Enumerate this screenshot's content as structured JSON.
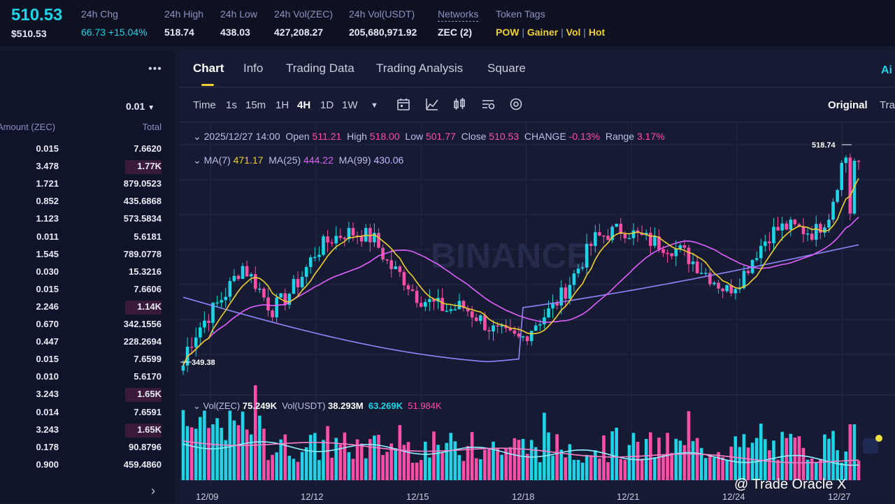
{
  "header": {
    "price_big": "510.53",
    "price_sub": "$510.53",
    "chg_label": "24h Chg",
    "chg_value": "66.73 +15.04%",
    "high_label": "24h High",
    "high_value": "518.74",
    "low_label": "24h Low",
    "low_value": "438.03",
    "vol_zec_label": "24h Vol(ZEC)",
    "vol_zec_value": "427,208.27",
    "vol_usdt_label": "24h Vol(USDT)",
    "vol_usdt_value": "205,680,971.92",
    "networks_label": "Networks",
    "networks_value": "ZEC (2)",
    "tags_label": "Token Tags",
    "tags": [
      "POW",
      "Gainer",
      "Vol",
      "Hot"
    ],
    "tag_sep": "|"
  },
  "orderbook": {
    "more_icon": "more-dots-icon",
    "precision": "0.01",
    "col_amount": "Amount (ZEC)",
    "col_total": "Total",
    "rows": [
      {
        "amount": "0.015",
        "total": "7.6620",
        "depth": 0
      },
      {
        "amount": "3.478",
        "total": "1.77K",
        "depth": 0.26
      },
      {
        "amount": "1.721",
        "total": "879.0523",
        "depth": 0
      },
      {
        "amount": "0.852",
        "total": "435.6868",
        "depth": 0
      },
      {
        "amount": "1.123",
        "total": "573.5834",
        "depth": 0
      },
      {
        "amount": "0.011",
        "total": "5.6181",
        "depth": 0
      },
      {
        "amount": "1.545",
        "total": "789.0778",
        "depth": 0
      },
      {
        "amount": "0.030",
        "total": "15.3216",
        "depth": 0
      },
      {
        "amount": "0.015",
        "total": "7.6606",
        "depth": 0
      },
      {
        "amount": "2.246",
        "total": "1.14K",
        "depth": 0.26
      },
      {
        "amount": "0.670",
        "total": "342.1556",
        "depth": 0
      },
      {
        "amount": "0.447",
        "total": "228.2694",
        "depth": 0
      },
      {
        "amount": "0.015",
        "total": "7.6599",
        "depth": 0
      },
      {
        "amount": "0.010",
        "total": "5.6170",
        "depth": 0
      },
      {
        "amount": "3.243",
        "total": "1.65K",
        "depth": 0.26
      },
      {
        "amount": "0.014",
        "total": "7.6591",
        "depth": 0
      },
      {
        "amount": "3.243",
        "total": "1.65K",
        "depth": 0.26
      },
      {
        "amount": "0.178",
        "total": "90.8796",
        "depth": 0
      },
      {
        "amount": "0.900",
        "total": "459.4860",
        "depth": 0
      }
    ]
  },
  "tabs": [
    "Chart",
    "Info",
    "Trading Data",
    "Trading Analysis",
    "Square"
  ],
  "ai_label": "Ai",
  "toolbar": {
    "timeframes": [
      "Time",
      "1s",
      "15m",
      "1H",
      "4H",
      "1D",
      "1W"
    ],
    "active_tf": "4H",
    "original": "Original",
    "trading_view": "Tra"
  },
  "ohlc": {
    "date": "2025/12/27 14:00",
    "open_label": "Open",
    "open": "511.21",
    "high_label": "High",
    "high": "518.00",
    "low_label": "Low",
    "low": "501.77",
    "close_label": "Close",
    "close": "510.53",
    "change_label": "CHANGE",
    "change": "-0.13%",
    "range_label": "Range",
    "range": "3.17%"
  },
  "ma": {
    "ma7_label": "MA(7)",
    "ma7": "471.17",
    "ma25_label": "MA(25)",
    "ma25": "444.22",
    "ma99_label": "MA(99)",
    "ma99": "430.06"
  },
  "vol_legend": {
    "zec_label": "Vol(ZEC)",
    "zec": "75.249K",
    "usdt_label": "Vol(USDT)",
    "usdt": "38.293M",
    "ma1": "63.269K",
    "ma2": "51.984K"
  },
  "chart_data": {
    "type": "candlestick",
    "x_labels": [
      "12/09",
      "12/12",
      "12/15",
      "12/18",
      "12/21",
      "12/24",
      "12/27"
    ],
    "high_marker": "518.74",
    "low_marker": "349.38",
    "watermark": "BINANCE",
    "closes": [
      360,
      380,
      395,
      410,
      430,
      415,
      395,
      405,
      420,
      440,
      450,
      455,
      455,
      450,
      430,
      420,
      405,
      400,
      395,
      398,
      390,
      380,
      375,
      372,
      385,
      395,
      410,
      430,
      450,
      455,
      458,
      452,
      448,
      445,
      440,
      430,
      420,
      410,
      420,
      440,
      455,
      460,
      458,
      455,
      470,
      515,
      510
    ]
  },
  "colors": {
    "up": "#20d3e6",
    "down": "#ff4fa8",
    "ma7": "#f0d030",
    "ma25": "#e060ff",
    "ma99": "#8f86ff",
    "accent": "#f0d030"
  },
  "watermark_text": "@ Trade Oracle X"
}
